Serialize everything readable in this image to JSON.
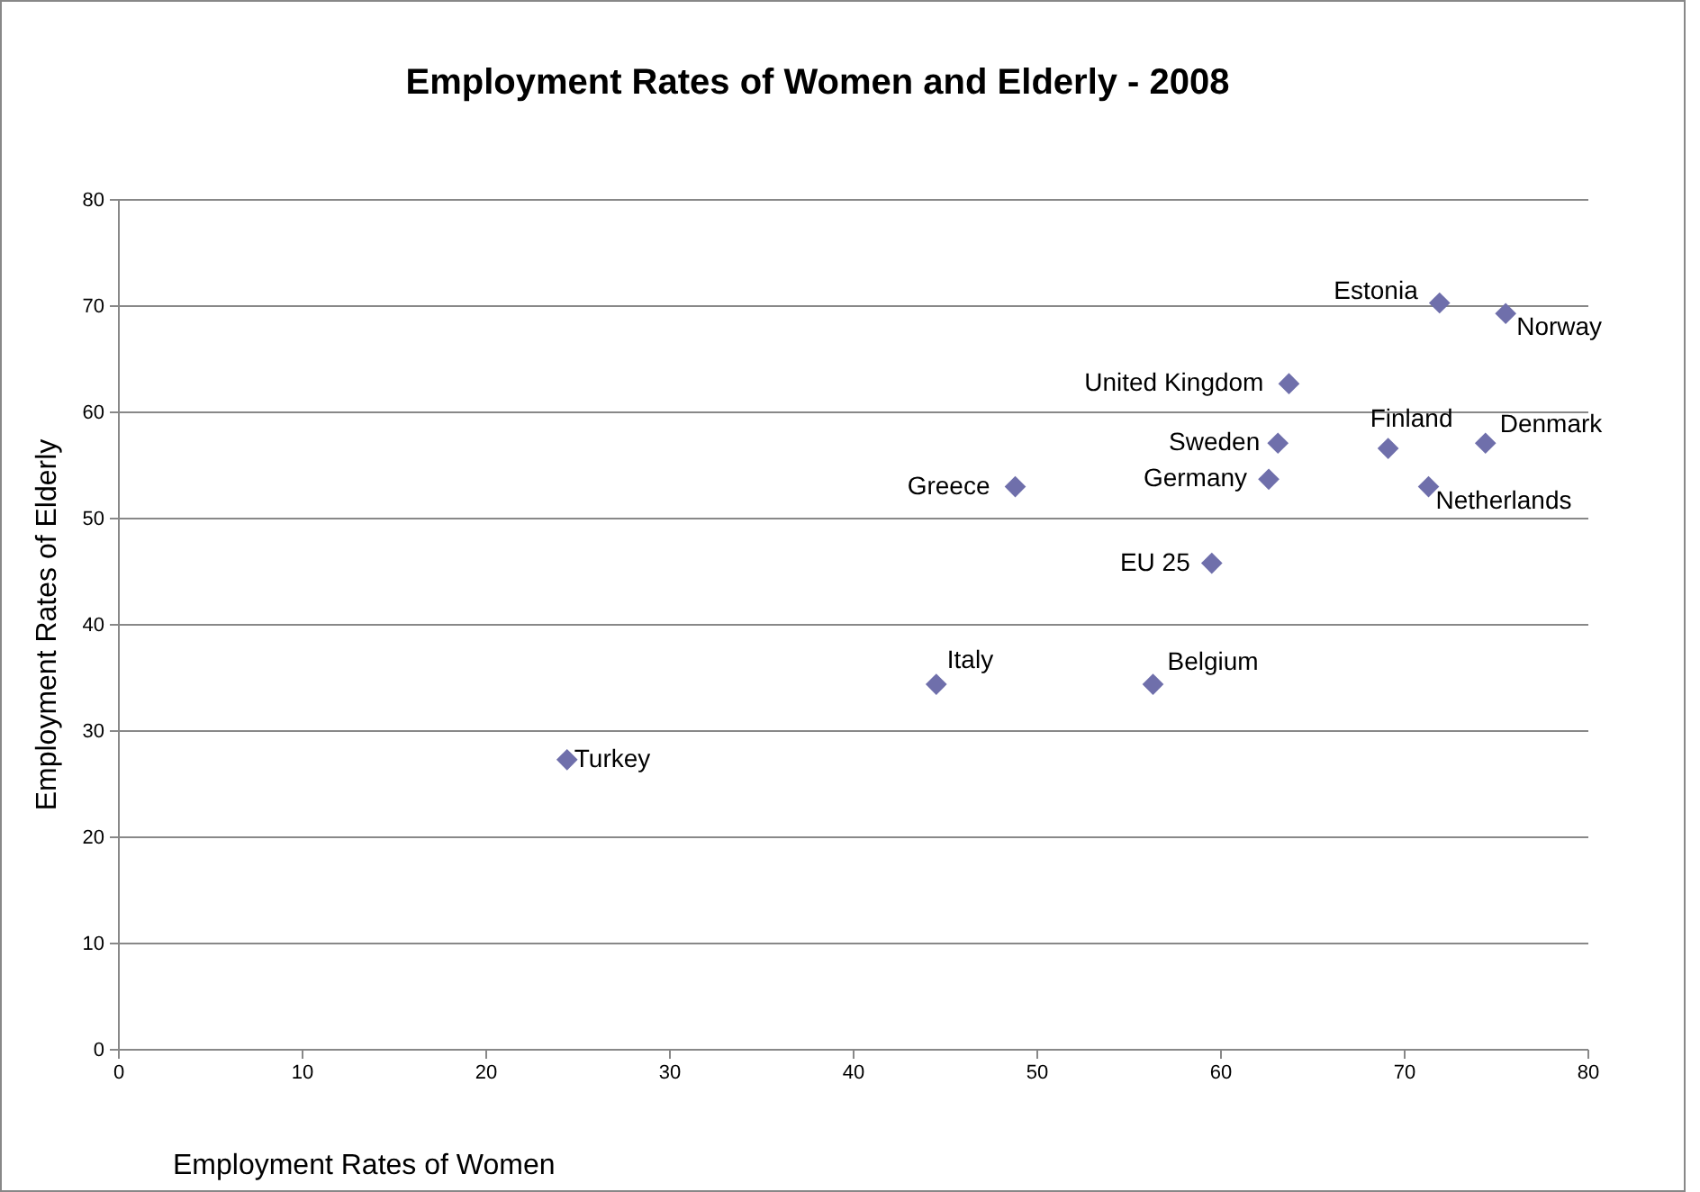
{
  "chart_data": {
    "type": "scatter",
    "title": "Employment Rates of Women and Elderly - 2008",
    "xlabel": "Employment Rates of Women",
    "ylabel": "Employment Rates of Elderly",
    "x": [
      24.4,
      44.5,
      56.3,
      48.8,
      59.5,
      62.6,
      63.1,
      63.7,
      69.1,
      71.3,
      74.4,
      71.9,
      75.5
    ],
    "series": [
      {
        "color": "#6f6fab",
        "values": [
          27.3,
          34.4,
          34.4,
          53.0,
          45.8,
          53.7,
          57.1,
          62.7,
          56.6,
          53.0,
          57.1,
          70.3,
          69.3
        ]
      }
    ],
    "annotations": [
      {
        "text": "Turkey",
        "x": 24.4,
        "y": 27.3
      },
      {
        "text": "Italy",
        "x": 44.5,
        "y": 34.4
      },
      {
        "text": "Belgium",
        "x": 56.3,
        "y": 34.4
      },
      {
        "text": "Greece",
        "x": 48.8,
        "y": 53.0
      },
      {
        "text": "EU 25",
        "x": 59.5,
        "y": 45.8
      },
      {
        "text": "Germany",
        "x": 62.6,
        "y": 53.7
      },
      {
        "text": "Sweden",
        "x": 63.1,
        "y": 57.1
      },
      {
        "text": "United Kingdom",
        "x": 63.7,
        "y": 62.7
      },
      {
        "text": "Finland",
        "x": 69.1,
        "y": 56.6
      },
      {
        "text": "Netherlands",
        "x": 71.3,
        "y": 53.0
      },
      {
        "text": "Denmark",
        "x": 74.4,
        "y": 57.1
      },
      {
        "text": "Estonia",
        "x": 71.9,
        "y": 70.3
      },
      {
        "text": "Norway",
        "x": 75.5,
        "y": 69.3
      }
    ],
    "xlim": [
      0,
      80
    ],
    "xticks": [
      0,
      10,
      20,
      30,
      40,
      50,
      60,
      70,
      80
    ],
    "ylim": [
      0,
      80
    ],
    "yticks": [
      0,
      10,
      20,
      30,
      40,
      50,
      60,
      70,
      80
    ],
    "grid": "y",
    "marker": "diamond"
  }
}
